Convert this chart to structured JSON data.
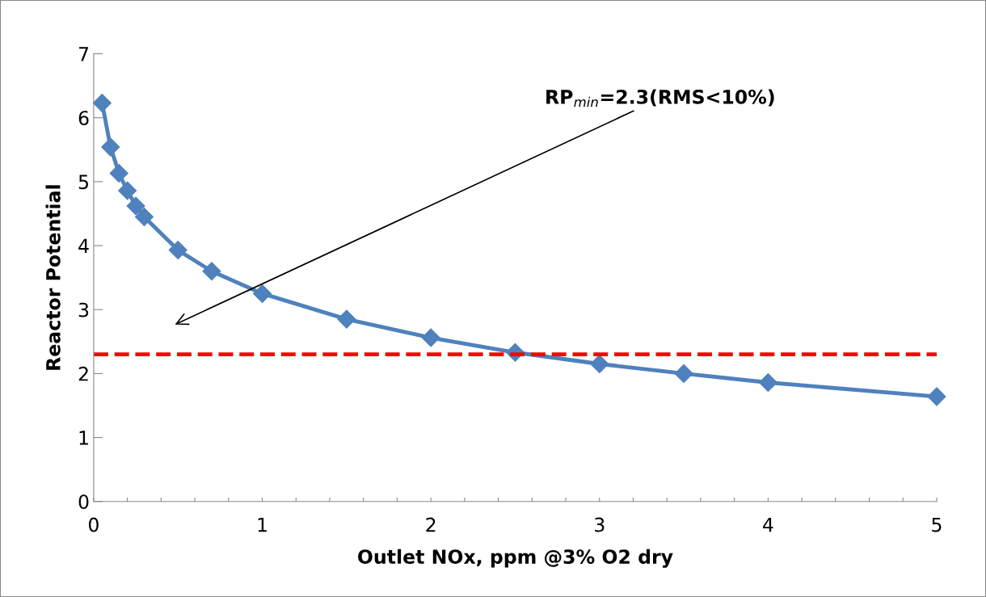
{
  "chart_data": {
    "type": "line",
    "xlabel": "Outlet NOx, ppm @3% O2 dry",
    "ylabel": "Reactor Potential",
    "x": [
      0.05,
      0.1,
      0.15,
      0.2,
      0.25,
      0.3,
      0.5,
      0.7,
      1.0,
      1.5,
      2.0,
      2.5,
      3.0,
      3.5,
      4.0,
      5.0
    ],
    "series": [
      {
        "color": "#4f81bd",
        "values": [
          6.23,
          5.54,
          5.13,
          4.86,
          4.62,
          4.45,
          3.93,
          3.6,
          3.25,
          2.85,
          2.56,
          2.33,
          2.15,
          2.0,
          1.86,
          1.64
        ]
      }
    ],
    "marker": "diamond",
    "line_style": "solid",
    "xlim": [
      0,
      5
    ],
    "ylim": [
      0,
      7
    ],
    "xticks": [
      0,
      {
        "value": 0.2,
        "label": null
      },
      {
        "value": 0.4,
        "label": null
      },
      {
        "value": 0.6,
        "label": null
      },
      {
        "value": 0.8,
        "label": null
      },
      1,
      {
        "value": 1.2,
        "label": null
      },
      {
        "value": 1.4,
        "label": null
      },
      {
        "value": 1.6,
        "label": null
      },
      {
        "value": 1.8,
        "label": null
      },
      2,
      {
        "value": 2.2,
        "label": null
      },
      {
        "value": 2.4,
        "label": null
      },
      {
        "value": 2.6,
        "label": null
      },
      {
        "value": 2.8,
        "label": null
      },
      3,
      {
        "value": 3.2,
        "label": null
      },
      {
        "value": 3.4,
        "label": null
      },
      {
        "value": 3.6,
        "label": null
      },
      {
        "value": 3.8,
        "label": null
      },
      4,
      {
        "value": 4.2,
        "label": null
      },
      {
        "value": 4.4,
        "label": null
      },
      {
        "value": 4.6,
        "label": null
      },
      {
        "value": 4.8,
        "label": null
      },
      5
    ],
    "yticks": [
      0,
      1,
      2,
      3,
      4,
      5,
      6,
      7
    ],
    "grid": false,
    "legend": false,
    "ref_lines": [
      {
        "axis": "y",
        "value": 2.3,
        "color": "#ff0000",
        "line_style": "dashed"
      }
    ],
    "annotations": [
      "RP$_{min}$=2.3(RMS<10%)"
    ]
  }
}
